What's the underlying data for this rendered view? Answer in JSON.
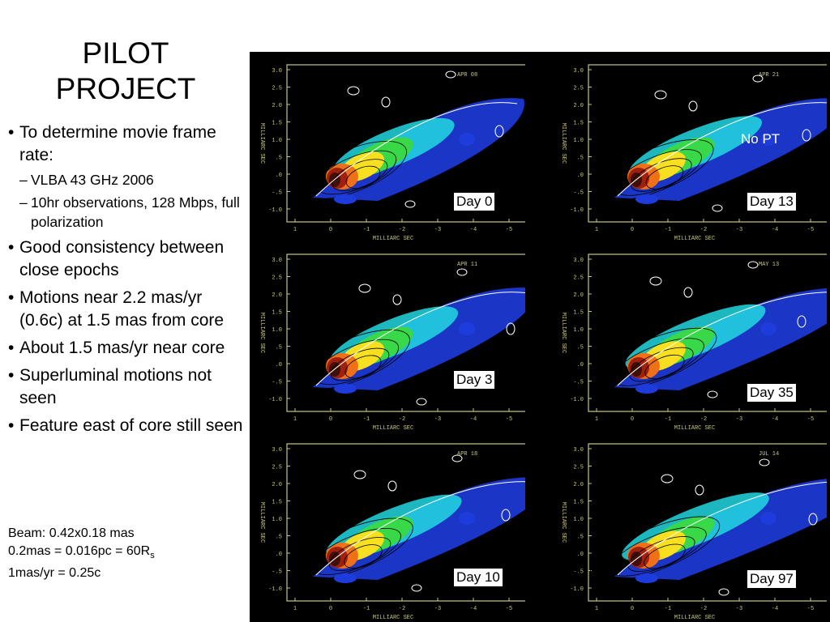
{
  "slide": {
    "title_line1": "PILOT",
    "title_line2": "PROJECT",
    "bullets": [
      {
        "text": "To determine movie frame rate:",
        "subs": [
          "VLBA 43 GHz  2006",
          "10hr observations, 128 Mbps, full polarization"
        ]
      },
      {
        "text": "Good consistency between close epochs"
      },
      {
        "text": "Motions near 2.2 mas/yr (0.6c) at 1.5 mas from core"
      },
      {
        "text": "About 1.5 mas/yr near core"
      },
      {
        "text": "Superluminal motions not seen"
      },
      {
        "text": "Feature east of core still seen"
      }
    ],
    "beam": {
      "line1": "Beam: 0.42x0.18 mas",
      "line2_main": "0.2mas = 0.016pc = 60R",
      "line2_sub": "s",
      "line3": "1mas/yr = 0.25c"
    }
  },
  "images": {
    "no_pt_label": "No PT",
    "axis": {
      "y_ticks": [
        "3.0",
        "2.5",
        "2.0",
        "1.5",
        "1.0",
        ".5",
        ".0",
        "-.5",
        "-1.0"
      ],
      "x_ticks": [
        "1",
        "0",
        "-1",
        "-2",
        "-3",
        "-4",
        "-5"
      ],
      "y_label": "MILLIARC SEC",
      "x_label": "MILLIARC SEC"
    },
    "panels": [
      {
        "epoch": "APR 08",
        "day": "Day 0"
      },
      {
        "epoch": "APR 21",
        "day": "Day 13"
      },
      {
        "epoch": "APR 11",
        "day": "Day 3"
      },
      {
        "epoch": "MAY 13",
        "day": "Day 35"
      },
      {
        "epoch": "APR 18",
        "day": "Day 10"
      },
      {
        "epoch": "JUL 14",
        "day": "Day 97"
      }
    ],
    "colors": {
      "background": "#000000",
      "frame": "#c8c880",
      "jet_blue": "#1e3cdc",
      "jet_cyan": "#22d8e0",
      "jet_green": "#38d848",
      "jet_yellow": "#f8e020",
      "core_orange": "#f07018",
      "core_red": "#a02010",
      "core_dark": "#401008"
    }
  }
}
